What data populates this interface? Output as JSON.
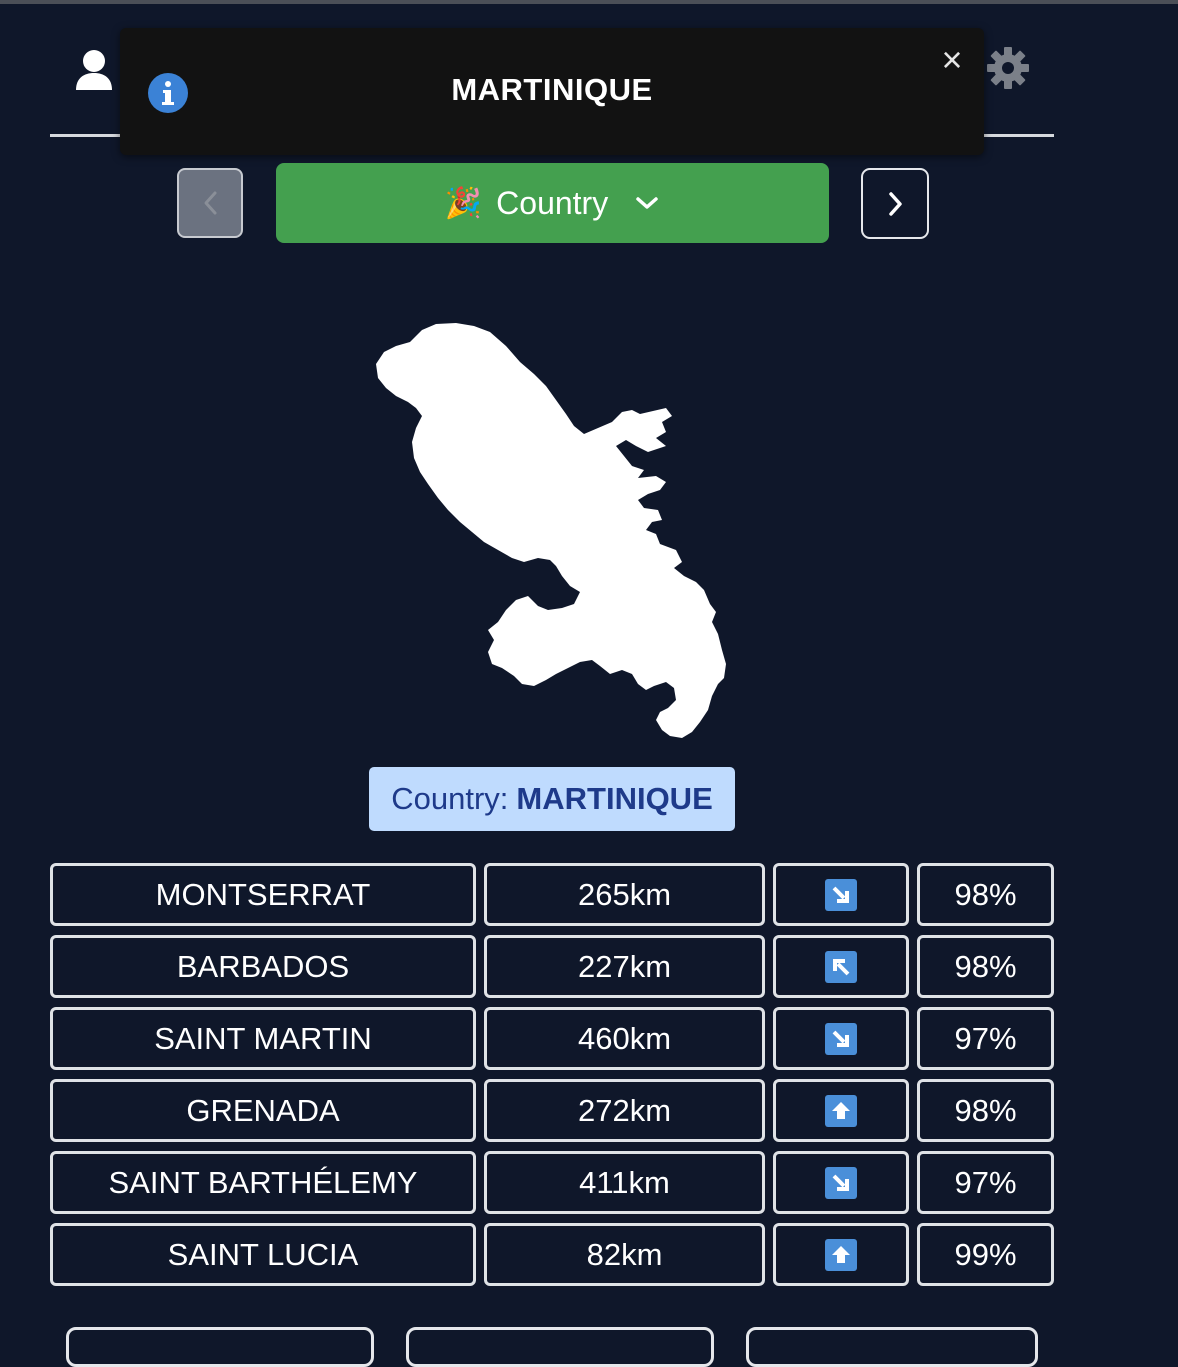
{
  "header": {
    "user_icon": "user-icon",
    "settings_icon": "gear-icon"
  },
  "toast": {
    "icon": "info-icon",
    "title": "MARTINIQUE",
    "close_label": "×"
  },
  "nav": {
    "prev_icon": "chevron-left-icon",
    "next_icon": "chevron-right-icon",
    "mode_emoji": "🎉",
    "mode_label": "Country",
    "mode_chevron": "chevron-down-icon"
  },
  "map": {
    "shape": "Martinique silhouette",
    "color": "#ffffff"
  },
  "answer": {
    "prefix": "Country:",
    "name": "MARTINIQUE"
  },
  "guesses": [
    {
      "name": "MONTSERRAT",
      "distance": "265km",
      "direction": "southeast",
      "proximity": "98%"
    },
    {
      "name": "BARBADOS",
      "distance": "227km",
      "direction": "northwest",
      "proximity": "98%"
    },
    {
      "name": "SAINT MARTIN",
      "distance": "460km",
      "direction": "southeast",
      "proximity": "97%"
    },
    {
      "name": "GRENADA",
      "distance": "272km",
      "direction": "north",
      "proximity": "98%"
    },
    {
      "name": "SAINT BARTHÉLEMY",
      "distance": "411km",
      "direction": "southeast",
      "proximity": "97%"
    },
    {
      "name": "SAINT LUCIA",
      "distance": "82km",
      "direction": "north",
      "proximity": "99%"
    }
  ],
  "colors": {
    "background": "#0f172a",
    "mode_button": "#44a04f",
    "answer_badge": "#bfdbfe",
    "answer_text": "#1e3a8a",
    "arrow": "#4a8fd9",
    "toast": "#121212"
  }
}
